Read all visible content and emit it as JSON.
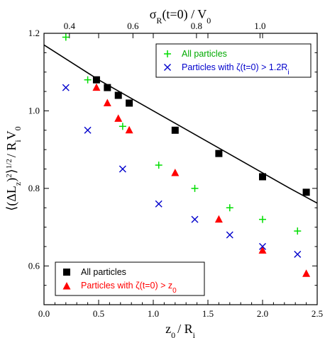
{
  "chart_data": {
    "type": "scatter",
    "xlabel": "z₀ / Rᵢ",
    "ylabel": "⟨(ΔL_z)²⟩^½ / RᵢV₀",
    "x2label": "σ_R(t=0) / V₀",
    "xlim": [
      0.0,
      2.5
    ],
    "ylim": [
      0.5,
      1.2
    ],
    "x2lim": [
      0.32,
      1.18
    ],
    "x_ticks": [
      "0.0",
      "0.5",
      "1.0",
      "1.5",
      "2.0",
      "2.5"
    ],
    "y_ticks": [
      "0.6",
      "0.8",
      "1.0",
      "1.2"
    ],
    "x2_ticks": [
      "0.4",
      "0.6",
      "0.8",
      "1.0"
    ],
    "x_tick_values": [
      0.0,
      0.5,
      1.0,
      1.5,
      2.0,
      2.5
    ],
    "y_tick_values": [
      0.6,
      0.8,
      1.0,
      1.2
    ],
    "x2_tick_values": [
      0.4,
      0.6,
      0.8,
      1.0
    ],
    "series": [
      {
        "name": "All particles",
        "marker": "square",
        "color": "#000000",
        "x": [
          0.48,
          0.58,
          0.68,
          0.78,
          1.2,
          1.6,
          2.0,
          2.4
        ],
        "y": [
          1.08,
          1.06,
          1.04,
          1.02,
          0.95,
          0.89,
          0.83,
          0.79
        ]
      },
      {
        "name": "Particles with ζ(t=0) > z₀",
        "marker": "triangle",
        "color": "#ff0000",
        "x": [
          0.48,
          0.58,
          0.68,
          0.78,
          1.2,
          1.6,
          2.0,
          2.4
        ],
        "y": [
          1.06,
          1.02,
          0.98,
          0.95,
          0.84,
          0.72,
          0.64,
          0.58
        ]
      },
      {
        "name": "All particles",
        "marker": "plus",
        "color": "#00dd00",
        "x": [
          0.2,
          0.4,
          0.72,
          1.05,
          1.38,
          1.7,
          2.0,
          2.32
        ],
        "y": [
          1.19,
          1.08,
          0.96,
          0.86,
          0.8,
          0.75,
          0.72,
          0.69
        ]
      },
      {
        "name": "Particles with ζ(t=0) > 1.2Rᵢ",
        "marker": "x",
        "color": "#0000cc",
        "x": [
          0.2,
          0.4,
          0.72,
          1.05,
          1.38,
          1.7,
          2.0,
          2.32
        ],
        "y": [
          1.06,
          0.95,
          0.85,
          0.76,
          0.72,
          0.68,
          0.65,
          0.63
        ]
      }
    ],
    "fit_curve": {
      "color": "#000000",
      "x": [
        0.0,
        0.25,
        0.5,
        0.75,
        1.0,
        1.25,
        1.5,
        1.75,
        2.0,
        2.25,
        2.5
      ],
      "y": [
        1.17,
        1.125,
        1.08,
        1.04,
        1.0,
        0.96,
        0.92,
        0.88,
        0.84,
        0.8,
        0.762
      ]
    },
    "legend_top": {
      "placement": "top-right",
      "entries": [
        "All particles",
        "Particles with ζ(t=0) > 1.2Rᵢ"
      ]
    },
    "legend_bottom": {
      "placement": "bottom-left",
      "entries": [
        "All particles",
        "Particles with ζ(t=0) > z₀"
      ]
    },
    "grid": false
  }
}
